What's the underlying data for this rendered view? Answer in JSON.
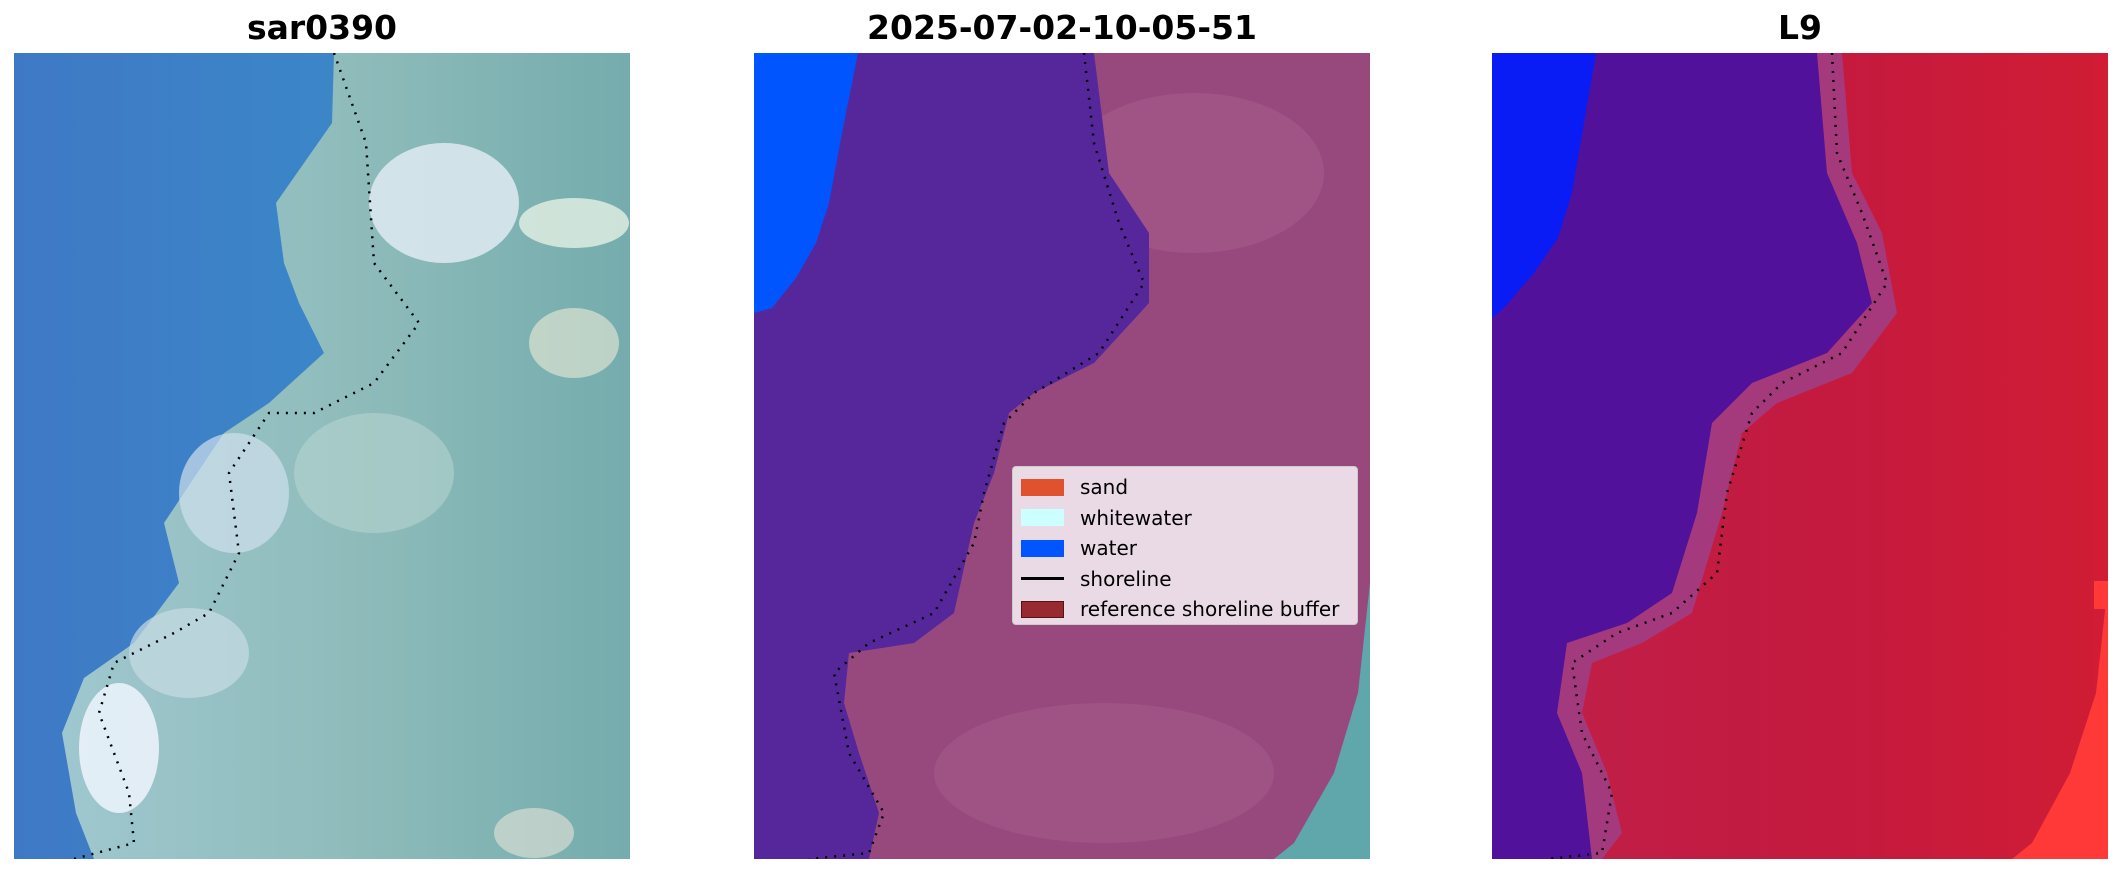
{
  "panels": [
    {
      "title": "sar0390"
    },
    {
      "title": "2025-07-02-10-05-51"
    },
    {
      "title": "L9"
    }
  ],
  "legend": {
    "items": [
      {
        "label": "sand",
        "kind": "patch",
        "color": "#e0522e",
        "edge": "#e0522e"
      },
      {
        "label": "whitewater",
        "kind": "patch",
        "color": "#ccffff",
        "edge": "#ccffff"
      },
      {
        "label": "water",
        "kind": "patch",
        "color": "#0055ff",
        "edge": "#0055ff"
      },
      {
        "label": "shoreline",
        "kind": "line",
        "color": "#000000"
      },
      {
        "label": "reference shoreline buffer",
        "kind": "patch",
        "color": "#972930",
        "edge": "#5a1015"
      }
    ]
  },
  "colors": {
    "panel1_water": "#3d88c8",
    "panel1_land": "#86b8b2",
    "panel2_water_class": "#55279a",
    "panel2_land": "#97497e",
    "panel2_ocean_class": "#0055ff",
    "panel3_water_index": "#52119a",
    "panel3_land_index": "#c31a40",
    "panel3_ocean_class": "#0a1cf5"
  }
}
